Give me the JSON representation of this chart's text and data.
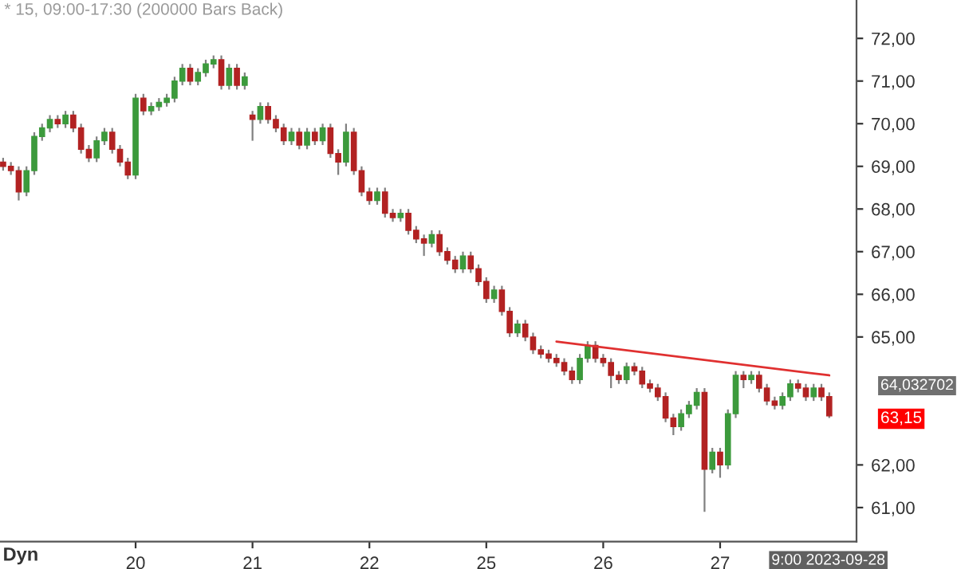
{
  "chart_data": {
    "type": "candlestick",
    "title": "* 15, 09:00-17:30 (200000 Bars Back)",
    "categories": [
      null,
      null,
      null,
      null,
      null,
      null,
      null,
      null,
      null,
      null,
      null,
      null,
      null,
      null,
      null,
      null,
      null,
      "20",
      null,
      null,
      null,
      null,
      null,
      null,
      null,
      null,
      null,
      null,
      null,
      null,
      null,
      null,
      "21",
      null,
      null,
      null,
      null,
      null,
      null,
      null,
      null,
      null,
      null,
      null,
      null,
      null,
      null,
      "22",
      null,
      null,
      null,
      null,
      null,
      null,
      null,
      null,
      null,
      null,
      null,
      null,
      null,
      null,
      "25",
      null,
      null,
      null,
      null,
      null,
      null,
      null,
      null,
      null,
      null,
      null,
      null,
      null,
      null,
      "26",
      null,
      null,
      null,
      null,
      null,
      null,
      null,
      null,
      null,
      null,
      null,
      null,
      null,
      null,
      "27",
      null,
      null,
      null,
      null,
      null,
      null,
      null,
      null,
      null,
      null,
      null,
      null,
      null,
      null
    ],
    "ohlc": [
      [
        69.1,
        69.2,
        68.9,
        69.0
      ],
      [
        69.0,
        69.1,
        68.8,
        68.9
      ],
      [
        68.9,
        69.0,
        68.2,
        68.4
      ],
      [
        68.4,
        69.0,
        68.3,
        68.9
      ],
      [
        68.9,
        69.8,
        68.8,
        69.7
      ],
      [
        69.7,
        70.0,
        69.6,
        69.9
      ],
      [
        69.9,
        70.2,
        69.8,
        70.1
      ],
      [
        70.1,
        70.2,
        69.9,
        70.0
      ],
      [
        70.0,
        70.3,
        69.9,
        70.2
      ],
      [
        70.2,
        70.3,
        69.8,
        69.9
      ],
      [
        69.9,
        70.0,
        69.3,
        69.4
      ],
      [
        69.4,
        69.5,
        69.1,
        69.2
      ],
      [
        69.2,
        69.7,
        69.1,
        69.6
      ],
      [
        69.6,
        69.9,
        69.5,
        69.8
      ],
      [
        69.8,
        69.9,
        69.3,
        69.4
      ],
      [
        69.4,
        69.5,
        69.0,
        69.1
      ],
      [
        69.1,
        69.2,
        68.7,
        68.8
      ],
      [
        68.8,
        70.7,
        68.7,
        70.6
      ],
      [
        70.6,
        70.7,
        70.2,
        70.3
      ],
      [
        70.3,
        70.5,
        70.2,
        70.4
      ],
      [
        70.4,
        70.6,
        70.3,
        70.5
      ],
      [
        70.5,
        70.7,
        70.4,
        70.6
      ],
      [
        70.6,
        71.1,
        70.5,
        71.0
      ],
      [
        71.0,
        71.4,
        70.9,
        71.3
      ],
      [
        71.3,
        71.4,
        70.9,
        71.0
      ],
      [
        71.0,
        71.3,
        70.9,
        71.2
      ],
      [
        71.2,
        71.5,
        71.1,
        71.4
      ],
      [
        71.4,
        71.6,
        71.3,
        71.5
      ],
      [
        71.5,
        71.6,
        70.8,
        70.9
      ],
      [
        70.9,
        71.4,
        70.8,
        71.3
      ],
      [
        71.3,
        71.4,
        70.8,
        70.9
      ],
      [
        70.9,
        71.2,
        70.8,
        71.1
      ],
      [
        70.2,
        70.3,
        69.6,
        70.1
      ],
      [
        70.1,
        70.5,
        70.0,
        70.4
      ],
      [
        70.4,
        70.5,
        70.0,
        70.1
      ],
      [
        70.1,
        70.2,
        69.8,
        69.9
      ],
      [
        69.9,
        70.0,
        69.5,
        69.6
      ],
      [
        69.6,
        69.9,
        69.5,
        69.8
      ],
      [
        69.8,
        69.9,
        69.4,
        69.5
      ],
      [
        69.5,
        69.9,
        69.4,
        69.8
      ],
      [
        69.8,
        69.9,
        69.5,
        69.6
      ],
      [
        69.6,
        70.0,
        69.5,
        69.9
      ],
      [
        69.9,
        70.0,
        69.2,
        69.3
      ],
      [
        69.3,
        69.4,
        68.8,
        69.1
      ],
      [
        69.1,
        70.0,
        69.0,
        69.8
      ],
      [
        69.8,
        69.9,
        68.8,
        68.9
      ],
      [
        68.9,
        69.0,
        68.3,
        68.4
      ],
      [
        68.4,
        68.5,
        68.1,
        68.2
      ],
      [
        68.2,
        68.5,
        68.1,
        68.4
      ],
      [
        68.4,
        68.5,
        67.8,
        67.9
      ],
      [
        67.9,
        68.0,
        67.7,
        67.8
      ],
      [
        67.8,
        68.0,
        67.7,
        67.9
      ],
      [
        67.9,
        68.0,
        67.4,
        67.5
      ],
      [
        67.5,
        67.6,
        67.2,
        67.3
      ],
      [
        67.3,
        67.4,
        66.9,
        67.2
      ],
      [
        67.2,
        67.5,
        67.1,
        67.4
      ],
      [
        67.4,
        67.5,
        66.9,
        67.0
      ],
      [
        67.0,
        67.1,
        66.7,
        66.8
      ],
      [
        66.8,
        66.9,
        66.5,
        66.6
      ],
      [
        66.6,
        67.0,
        66.5,
        66.9
      ],
      [
        66.9,
        67.0,
        66.5,
        66.6
      ],
      [
        66.6,
        66.7,
        66.2,
        66.3
      ],
      [
        66.3,
        66.4,
        65.8,
        65.9
      ],
      [
        65.9,
        66.2,
        65.8,
        66.1
      ],
      [
        66.1,
        66.2,
        65.5,
        65.6
      ],
      [
        65.6,
        65.7,
        65.0,
        65.1
      ],
      [
        65.1,
        65.4,
        65.0,
        65.3
      ],
      [
        65.3,
        65.4,
        64.9,
        65.0
      ],
      [
        65.0,
        65.1,
        64.6,
        64.7
      ],
      [
        64.7,
        64.8,
        64.5,
        64.6
      ],
      [
        64.6,
        64.7,
        64.4,
        64.5
      ],
      [
        64.5,
        64.6,
        64.3,
        64.4
      ],
      [
        64.4,
        64.5,
        64.1,
        64.2
      ],
      [
        64.2,
        64.3,
        63.9,
        64.0
      ],
      [
        64.0,
        64.6,
        63.9,
        64.5
      ],
      [
        64.5,
        64.9,
        64.4,
        64.8
      ],
      [
        64.8,
        64.9,
        64.4,
        64.5
      ],
      [
        64.5,
        64.6,
        64.3,
        64.4
      ],
      [
        64.4,
        64.5,
        63.8,
        64.1
      ],
      [
        64.1,
        64.2,
        63.9,
        64.0
      ],
      [
        64.0,
        64.4,
        63.9,
        64.3
      ],
      [
        64.3,
        64.4,
        64.1,
        64.2
      ],
      [
        64.2,
        64.3,
        63.8,
        63.9
      ],
      [
        63.9,
        64.0,
        63.7,
        63.8
      ],
      [
        63.8,
        63.9,
        63.5,
        63.6
      ],
      [
        63.6,
        63.7,
        63.0,
        63.1
      ],
      [
        63.1,
        63.2,
        62.7,
        62.9
      ],
      [
        62.9,
        63.3,
        62.8,
        63.2
      ],
      [
        63.2,
        63.5,
        63.1,
        63.4
      ],
      [
        63.4,
        63.8,
        63.3,
        63.7
      ],
      [
        63.7,
        63.8,
        60.9,
        61.9
      ],
      [
        61.9,
        62.4,
        61.8,
        62.3
      ],
      [
        62.3,
        62.4,
        61.7,
        62.0
      ],
      [
        62.0,
        63.3,
        61.9,
        63.2
      ],
      [
        63.2,
        64.2,
        63.1,
        64.1
      ],
      [
        64.1,
        64.2,
        63.8,
        64.0
      ],
      [
        64.0,
        64.2,
        63.9,
        64.1
      ],
      [
        64.1,
        64.2,
        63.7,
        63.8
      ],
      [
        63.8,
        63.9,
        63.4,
        63.5
      ],
      [
        63.5,
        63.6,
        63.3,
        63.4
      ],
      [
        63.4,
        63.7,
        63.3,
        63.6
      ],
      [
        63.6,
        64.0,
        63.5,
        63.9
      ],
      [
        63.9,
        64.0,
        63.7,
        63.8
      ],
      [
        63.8,
        63.9,
        63.5,
        63.6
      ],
      [
        63.6,
        63.9,
        63.5,
        63.8
      ],
      [
        63.8,
        63.9,
        63.5,
        63.6
      ],
      [
        63.6,
        63.7,
        63.1,
        63.15
      ]
    ],
    "colors": [
      "#b22222",
      "#b22222",
      "#b22222",
      "#3c9a3c",
      "#3c9a3c",
      "#3c9a3c",
      "#3c9a3c",
      "#b22222",
      "#3c9a3c",
      "#b22222",
      "#b22222",
      "#b22222",
      "#3c9a3c",
      "#3c9a3c",
      "#b22222",
      "#b22222",
      "#b22222",
      "#3c9a3c",
      "#b22222",
      "#3c9a3c",
      "#3c9a3c",
      "#3c9a3c",
      "#3c9a3c",
      "#3c9a3c",
      "#b22222",
      "#3c9a3c",
      "#3c9a3c",
      "#3c9a3c",
      "#b22222",
      "#3c9a3c",
      "#b22222",
      "#3c9a3c",
      "#b22222",
      "#3c9a3c",
      "#b22222",
      "#b22222",
      "#b22222",
      "#3c9a3c",
      "#b22222",
      "#3c9a3c",
      "#b22222",
      "#3c9a3c",
      "#b22222",
      "#b22222",
      "#3c9a3c",
      "#b22222",
      "#b22222",
      "#b22222",
      "#3c9a3c",
      "#b22222",
      "#b22222",
      "#3c9a3c",
      "#b22222",
      "#b22222",
      "#b22222",
      "#3c9a3c",
      "#b22222",
      "#b22222",
      "#b22222",
      "#3c9a3c",
      "#b22222",
      "#b22222",
      "#b22222",
      "#3c9a3c",
      "#b22222",
      "#b22222",
      "#3c9a3c",
      "#b22222",
      "#b22222",
      "#b22222",
      "#b22222",
      "#b22222",
      "#b22222",
      "#b22222",
      "#3c9a3c",
      "#3c9a3c",
      "#b22222",
      "#b22222",
      "#b22222",
      "#b22222",
      "#3c9a3c",
      "#b22222",
      "#b22222",
      "#b22222",
      "#b22222",
      "#b22222",
      "#b22222",
      "#3c9a3c",
      "#3c9a3c",
      "#3c9a3c",
      "#b22222",
      "#3c9a3c",
      "#b22222",
      "#3c9a3c",
      "#3c9a3c",
      "#b22222",
      "#3c9a3c",
      "#b22222",
      "#b22222",
      "#b22222",
      "#3c9a3c",
      "#3c9a3c",
      "#b22222",
      "#b22222",
      "#3c9a3c",
      "#b22222",
      "#b22222"
    ],
    "series": [
      {
        "type": "line",
        "color": "#e03030",
        "values": [
          null,
          null,
          null,
          null,
          null,
          null,
          null,
          null,
          null,
          null,
          null,
          null,
          null,
          null,
          null,
          null,
          null,
          null,
          null,
          null,
          null,
          null,
          null,
          null,
          null,
          null,
          null,
          null,
          null,
          null,
          null,
          null,
          null,
          null,
          null,
          null,
          null,
          null,
          null,
          null,
          null,
          null,
          null,
          null,
          null,
          null,
          null,
          null,
          null,
          null,
          null,
          null,
          null,
          null,
          null,
          null,
          null,
          null,
          null,
          null,
          null,
          null,
          null,
          null,
          null,
          null,
          null,
          null,
          null,
          null,
          null,
          64.89,
          null,
          null,
          null,
          null,
          null,
          null,
          null,
          null,
          null,
          null,
          null,
          null,
          null,
          null,
          null,
          null,
          null,
          null,
          null,
          null,
          null,
          null,
          null,
          null,
          null,
          null,
          null,
          null,
          null,
          null,
          null,
          null,
          null,
          null,
          64.1
        ]
      }
    ],
    "ylim": [
      60.2,
      72.9
    ],
    "yticks": [
      {
        "value": 61,
        "label": "61,00"
      },
      {
        "value": 62,
        "label": "62,00"
      },
      {
        "value": 65,
        "label": "65,00"
      },
      {
        "value": 66,
        "label": "66,00"
      },
      {
        "value": 67,
        "label": "67,00"
      },
      {
        "value": 68,
        "label": "68,00"
      },
      {
        "value": 69,
        "label": "69,00"
      },
      {
        "value": 70,
        "label": "70,00"
      },
      {
        "value": 71,
        "label": "71,00"
      },
      {
        "value": 72,
        "label": "72,00"
      }
    ],
    "annotations": [
      "64,032702",
      "63,15",
      "9:00 2023-09-28",
      "Dyn"
    ],
    "grid": false
  }
}
